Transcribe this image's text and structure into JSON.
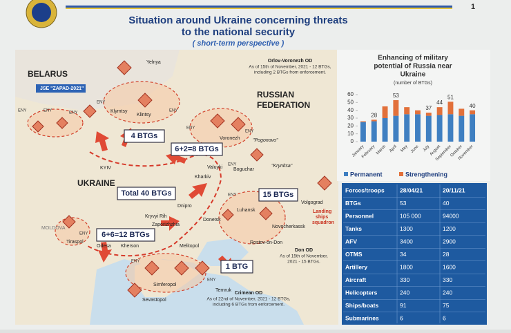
{
  "page_number": "1",
  "header": {
    "title_lines": [
      "Situation around Ukraine concerning threats",
      "to the national security"
    ],
    "subtitle": "( short-term perspective )"
  },
  "map": {
    "labels": [
      "BELARUS",
      "JSE \"ZAPAD-2021\"",
      "RUSSIAN",
      "FEDERATION",
      "UKRAINE",
      "MOLDOVA",
      "Yelnya",
      "KYIV",
      "Kharkiv",
      "Valuyki",
      "Boguchar",
      "Voronezh",
      "\"Pogonovo\"",
      "\"Krynitsa\"",
      "Klintsy",
      "Klymtsy",
      "Dnipro",
      "Kryvyi Rih",
      "Zaporizhzhia",
      "Donetsk",
      "Luhansk",
      "Volgograd",
      "Novocherkassk",
      "Rostov-on-Don",
      "Odesa",
      "Kherson",
      "Melitopol",
      "Tiraspol",
      "Simferopol",
      "Sevastopol",
      "Temruk",
      "Landing",
      "ships",
      "squadron"
    ],
    "btg_boxes": [
      "4 BTGs",
      "6+2=8 BTGs",
      "Total 40 BTGs",
      "15 BTGs",
      "6+6=12 BTGs",
      "1 BTG"
    ],
    "notes": [
      {
        "title": "Orlov-Voronezh OD",
        "lines": [
          "As of 15th of November, 2021 - 12 BTGs,",
          "including 2 BTGs from enforcement."
        ]
      },
      {
        "title": "Don OD",
        "lines": [
          "As of 15th of November,",
          "2021 - 15 BTGs."
        ]
      },
      {
        "title": "Crimean OD",
        "lines": [
          "As of 22nd of November, 2021 - 12 BTGs,",
          "including 6 BTGs from enforcement."
        ]
      }
    ],
    "unit_tags": [
      "ENY",
      "ENY",
      "ENY",
      "ENY",
      "ENY",
      "ENY",
      "ENY",
      "ENY",
      "ENY",
      "ENY",
      "ENY",
      "ENY"
    ]
  },
  "chart_data": {
    "type": "stacked_bar",
    "title_lines": [
      "Enhancing of military",
      "potential of Russia near",
      "Ukraine"
    ],
    "subtitle": "(number of BTGs)",
    "categories": [
      "January",
      "February",
      "March",
      "April",
      "May",
      "June",
      "July",
      "August",
      "September",
      "October",
      "November"
    ],
    "series": [
      {
        "name": "Permanent",
        "color": "#3f7fc1",
        "values": [
          25,
          26,
          30,
          33,
          35,
          35,
          33,
          34,
          35,
          33,
          35
        ]
      },
      {
        "name": "Strengthening",
        "color": "#e2703a",
        "values": [
          1,
          2,
          15,
          20,
          9,
          5,
          4,
          10,
          16,
          9,
          5
        ]
      }
    ],
    "total_labels": [
      {
        "category": "February",
        "value": 28
      },
      {
        "category": "April",
        "value": 53
      },
      {
        "category": "July",
        "value": 37
      },
      {
        "category": "August",
        "value": 44
      },
      {
        "category": "September",
        "value": 51
      },
      {
        "category": "November",
        "value": 40
      }
    ],
    "ylim": [
      0,
      60
    ],
    "yticks": [
      0,
      10,
      20,
      30,
      40,
      50,
      60
    ],
    "grid": false
  },
  "table": {
    "header": [
      "Forces/troops",
      "28/04/21",
      "20/11/21"
    ],
    "rows": [
      [
        "BTGs",
        "53",
        "40"
      ],
      [
        "Personnel",
        "105 000",
        "94000"
      ],
      [
        "Tanks",
        "1300",
        "1200"
      ],
      [
        "AFV",
        "3400",
        "2900"
      ],
      [
        "OTMS",
        "34",
        "28"
      ],
      [
        "Artillery",
        "1800",
        "1600"
      ],
      [
        "Aircraft",
        "330",
        "330"
      ],
      [
        "Helicopters",
        "240",
        "240"
      ],
      [
        "Ships/boats",
        "91",
        "75"
      ],
      [
        "Submarines",
        "6",
        "6"
      ]
    ]
  }
}
